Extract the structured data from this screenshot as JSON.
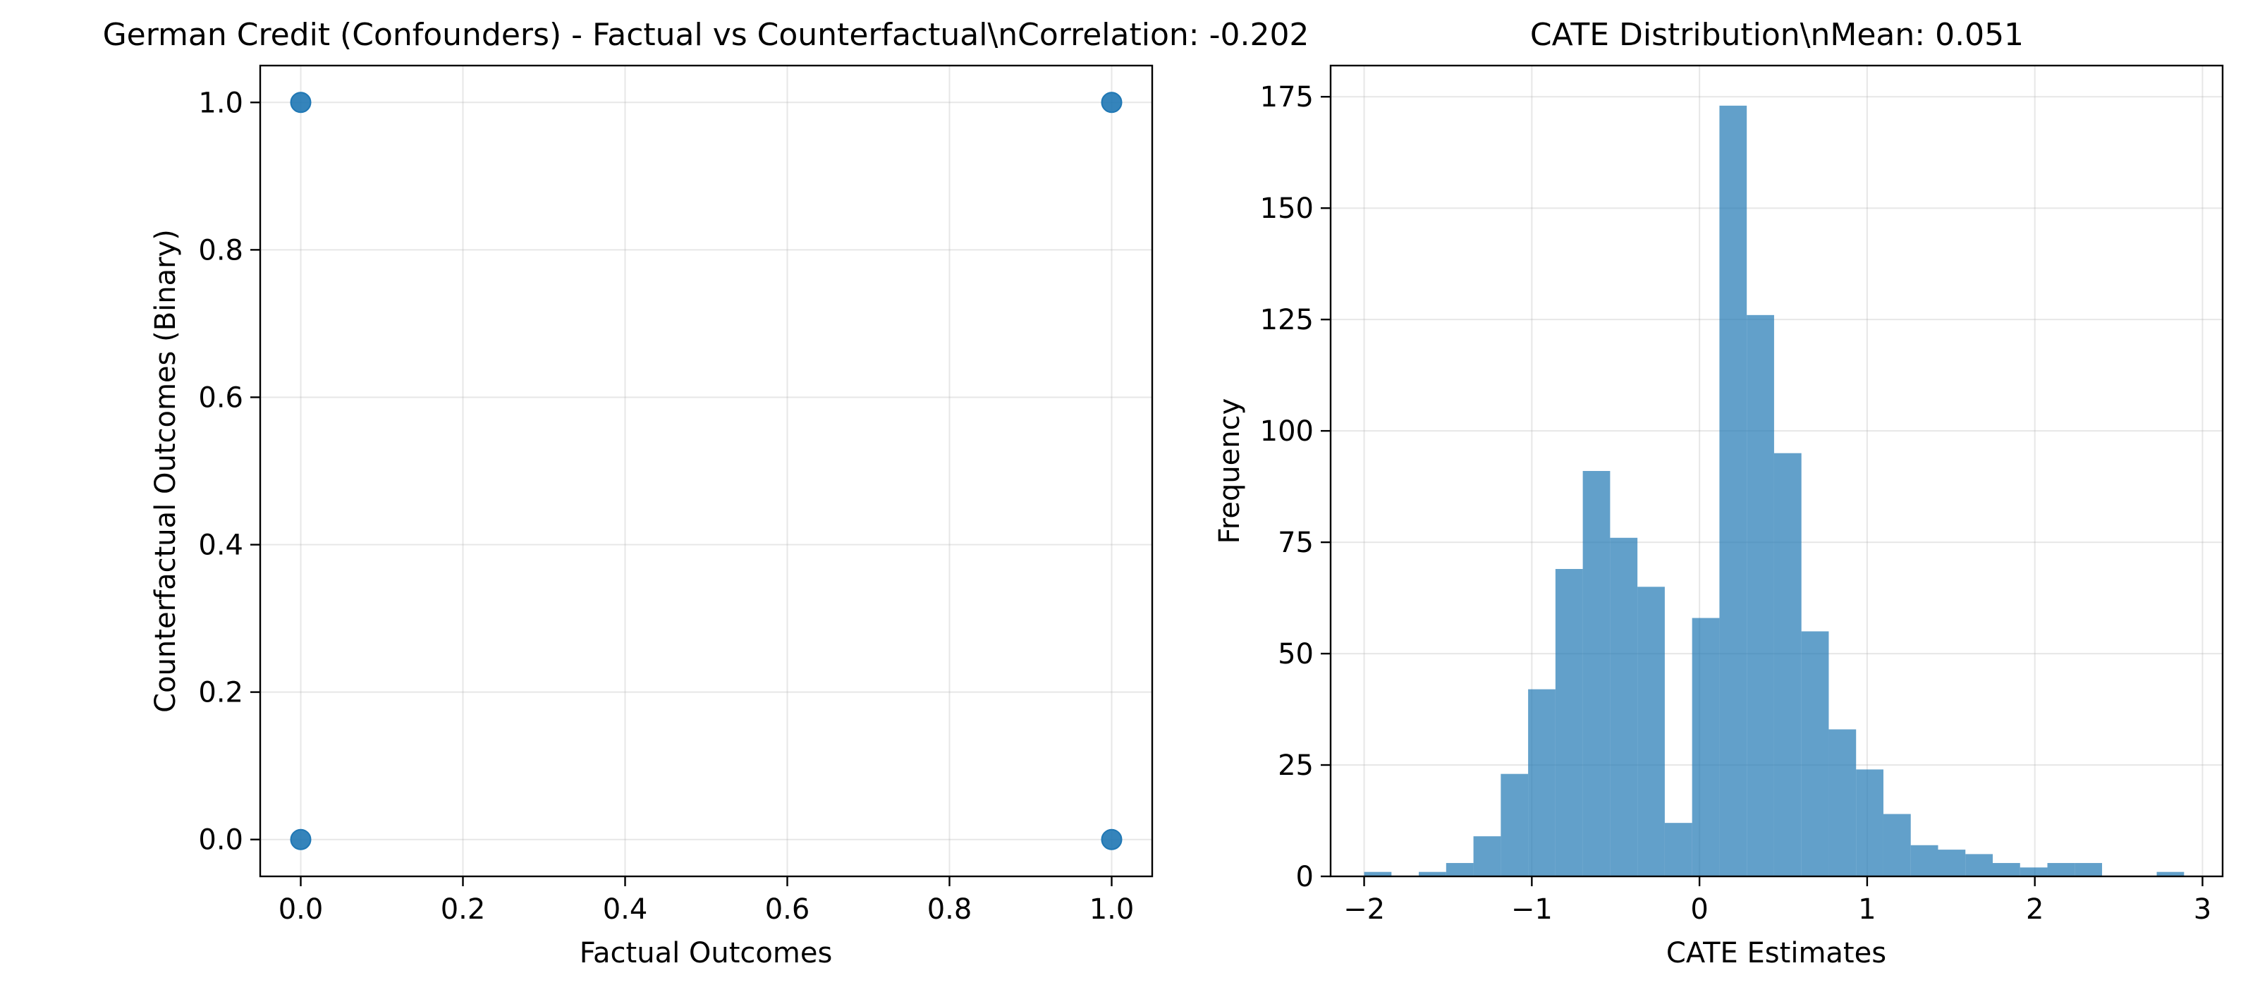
{
  "chart_data": [
    {
      "type": "scatter",
      "title": "German Credit (Confounders) - Factual vs Counterfactual\\nCorrelation: -0.202",
      "xlabel": "Factual Outcomes",
      "ylabel": "Counterfactual Outcomes (Binary)",
      "xlim": [
        -0.05,
        1.05
      ],
      "ylim": [
        -0.05,
        1.05
      ],
      "xticks": [
        0.0,
        0.2,
        0.4,
        0.6,
        0.8,
        1.0
      ],
      "yticks": [
        0.0,
        0.2,
        0.4,
        0.6,
        0.8,
        1.0
      ],
      "xtick_labels": [
        "0.0",
        "0.2",
        "0.4",
        "0.6",
        "0.8",
        "1.0"
      ],
      "ytick_labels": [
        "0.0",
        "0.2",
        "0.4",
        "0.6",
        "0.8",
        "1.0"
      ],
      "grid": true,
      "points": [
        {
          "x": 0,
          "y": 1
        },
        {
          "x": 1,
          "y": 1
        },
        {
          "x": 0,
          "y": 0
        },
        {
          "x": 1,
          "y": 0
        }
      ],
      "color": "#1f77b4"
    },
    {
      "type": "bar",
      "title": "CATE Distribution\\nMean: 0.051",
      "xlabel": "CATE Estimates",
      "ylabel": "Frequency",
      "xlim": [
        -2.2,
        3.12
      ],
      "ylim": [
        0,
        182
      ],
      "xticks": [
        -2,
        -1,
        0,
        1,
        2,
        3
      ],
      "yticks": [
        0,
        25,
        50,
        75,
        100,
        125,
        150,
        175
      ],
      "xtick_labels": [
        "−2",
        "−1",
        "0",
        "1",
        "2",
        "3"
      ],
      "ytick_labels": [
        "0",
        "25",
        "50",
        "75",
        "100",
        "125",
        "150",
        "175"
      ],
      "grid": true,
      "bin_start": -2.0,
      "bin_width": 0.163,
      "values": [
        1,
        0,
        1,
        3,
        9,
        23,
        42,
        69,
        91,
        76,
        65,
        12,
        58,
        173,
        126,
        95,
        55,
        33,
        24,
        14,
        7,
        6,
        5,
        3,
        2,
        3,
        3,
        0,
        0,
        1
      ],
      "color": "#1f77b4",
      "alpha": 0.7
    }
  ]
}
